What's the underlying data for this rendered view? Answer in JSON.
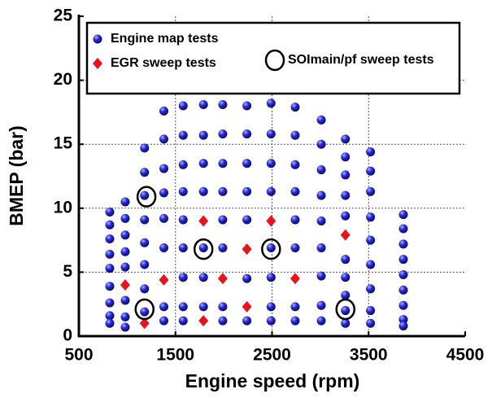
{
  "chart_data": {
    "type": "scatter",
    "x_label": "Engine speed (rpm)",
    "y_label": "BMEP (bar)",
    "xlim": [
      500,
      4500
    ],
    "ylim": [
      0,
      25
    ],
    "xticks": [
      500,
      1500,
      2500,
      3500,
      4500
    ],
    "yticks": [
      0,
      5,
      10,
      15,
      20,
      25
    ],
    "grid": true,
    "legend_position": "top",
    "series": [
      {
        "name": "Engine map tests",
        "color": "#1a1acc",
        "marker": "sphere",
        "x": [
          820,
          820,
          820,
          820,
          820,
          820,
          820,
          820,
          820,
          980,
          980,
          980,
          980,
          980,
          980,
          980,
          980,
          1180,
          1180,
          1180,
          1180,
          1180,
          1180,
          1180,
          1180,
          1380,
          1380,
          1380,
          1380,
          1380,
          1380,
          1380,
          1380,
          1580,
          1580,
          1580,
          1580,
          1580,
          1580,
          1580,
          1580,
          1580,
          1790,
          1790,
          1790,
          1790,
          1790,
          1790,
          1790,
          1990,
          1990,
          1990,
          1990,
          1990,
          1990,
          1990,
          1990,
          2240,
          2240,
          2240,
          2240,
          2240,
          2240,
          2240,
          2490,
          2490,
          2490,
          2490,
          2490,
          2490,
          2490,
          2490,
          2740,
          2740,
          2740,
          2740,
          2740,
          2740,
          2740,
          2740,
          3010,
          3010,
          3010,
          3010,
          3010,
          3010,
          3010,
          3010,
          3010,
          3260,
          3260,
          3260,
          3260,
          3260,
          3260,
          3260,
          3260,
          3260,
          3260,
          3520,
          3520,
          3520,
          3520,
          3520,
          3520,
          3520,
          3520,
          3520,
          3860,
          3860,
          3860,
          3860,
          3860,
          3860,
          3860,
          3860,
          3860
        ],
        "values": [
          9.7,
          8.7,
          7.6,
          6.4,
          5.3,
          3.9,
          2.6,
          1.6,
          1.0,
          10.5,
          9.2,
          7.9,
          6.6,
          5.4,
          2.8,
          1.5,
          0.7,
          14.7,
          12.8,
          11.0,
          9.1,
          7.3,
          5.6,
          3.7,
          1.9,
          17.6,
          15.4,
          13.1,
          11.2,
          9.2,
          6.9,
          2.3,
          1.2,
          18.0,
          15.7,
          13.4,
          11.3,
          9.1,
          6.9,
          4.6,
          2.3,
          1.2,
          18.1,
          15.7,
          13.5,
          11.3,
          6.9,
          4.6,
          2.3,
          18.1,
          15.8,
          13.5,
          11.3,
          9.1,
          6.9,
          2.3,
          1.2,
          18.0,
          15.8,
          13.5,
          11.3,
          9.1,
          4.5,
          1.2,
          18.2,
          15.8,
          13.5,
          11.3,
          6.9,
          4.6,
          2.3,
          1.2,
          17.9,
          15.7,
          13.4,
          11.3,
          9.1,
          6.9,
          2.3,
          1.2,
          16.9,
          15.0,
          13.0,
          11.0,
          9.0,
          6.9,
          4.7,
          2.4,
          1.2,
          15.4,
          14.0,
          12.6,
          11.0,
          9.4,
          6.0,
          4.6,
          3.2,
          2.0,
          1.0,
          14.4,
          12.9,
          11.3,
          9.3,
          7.5,
          5.6,
          3.7,
          2.0,
          1.0,
          9.5,
          8.4,
          7.2,
          6.0,
          4.8,
          3.6,
          2.4,
          1.3,
          0.8
        ]
      },
      {
        "name": "EGR sweep tests",
        "color": "#e8141c",
        "marker": "diamond",
        "x": [
          980,
          1180,
          1380,
          1790,
          1790,
          1990,
          2240,
          2240,
          2490,
          2740,
          3260
        ],
        "values": [
          4.0,
          1.0,
          4.4,
          9.0,
          1.2,
          4.5,
          6.8,
          2.3,
          9.0,
          4.5,
          7.9
        ]
      },
      {
        "name": "SOImain/pf sweep tests",
        "color": "#000000",
        "marker": "ring",
        "x": [
          1200,
          1790,
          2490,
          1180,
          3260
        ],
        "values": [
          10.9,
          6.8,
          6.8,
          2.1,
          2.1
        ]
      }
    ]
  }
}
